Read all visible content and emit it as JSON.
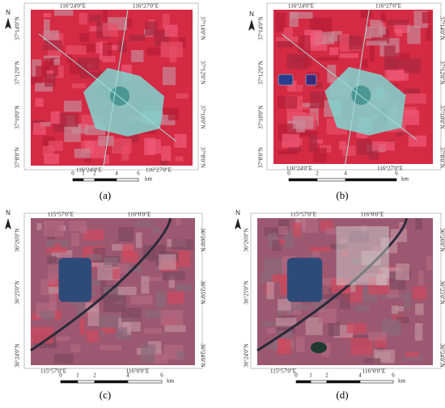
{
  "panels": [
    {
      "caption": "(a)",
      "north": "N",
      "top_labels": [
        "116°24'0\"E",
        "116°27'0\"E"
      ],
      "bottom_labels": [
        "116°24'0\"E",
        "116°27'0\"E"
      ],
      "left_labels": [
        "37°14'0\"N",
        "37°12'0\"N",
        "37°10'0\"N",
        "37°8'0\"N"
      ],
      "right_labels": [
        "37°14'0\"N",
        "37°12'0\"N",
        "37°10'0\"N",
        "37°8'0\"N"
      ],
      "scale_ticks": [
        "0",
        "1",
        "2",
        "4",
        "6"
      ],
      "scale_unit": "km"
    },
    {
      "caption": "(b)",
      "north": "N",
      "top_labels": [
        "116°24'0\"E",
        "116°27'0\"E"
      ],
      "bottom_labels": [
        "116°24'0\"E",
        "116°27'0\"E"
      ],
      "left_labels": [
        "37°14'0\"N",
        "37°12'0\"N",
        "37°10'0\"N",
        "37°8'0\"N"
      ],
      "right_labels": [
        "37°14'0\"N",
        "37°12'0\"N",
        "37°10'0\"N",
        "37°8'0\"N"
      ],
      "scale_ticks": [
        "0",
        "2",
        "4",
        "6"
      ],
      "scale_unit": "km"
    },
    {
      "caption": "(c)",
      "north": "N",
      "top_labels": [
        "115°57'0\"E",
        "116°0'0\"E"
      ],
      "bottom_labels": [
        "115°57'0\"E",
        "116°0'0\"E"
      ],
      "left_labels": [
        "36°26'0\"N",
        "36°25'0\"N",
        "36°24'0\"N"
      ],
      "right_labels": [
        "36°26'0\"N",
        "36°25'0\"N",
        "36°24'0\"N"
      ],
      "scale_ticks": [
        "0",
        "1",
        "2",
        "4",
        "6"
      ],
      "scale_unit": "km"
    },
    {
      "caption": "(d)",
      "north": "N",
      "top_labels": [
        "115°57'0\"E",
        "116°0'0\"E"
      ],
      "bottom_labels": [
        "115°57'0\"E",
        "116°0'0\"E"
      ],
      "left_labels": [
        "36°26'0\"N",
        "36°25'0\"N",
        "36°24'0\"N"
      ],
      "right_labels": [
        "36°26'0\"N",
        "36°25'0\"N",
        "36°24'0\"N"
      ],
      "scale_ticks": [
        "0",
        "1",
        "2",
        "4",
        "6"
      ],
      "scale_unit": "km"
    }
  ]
}
